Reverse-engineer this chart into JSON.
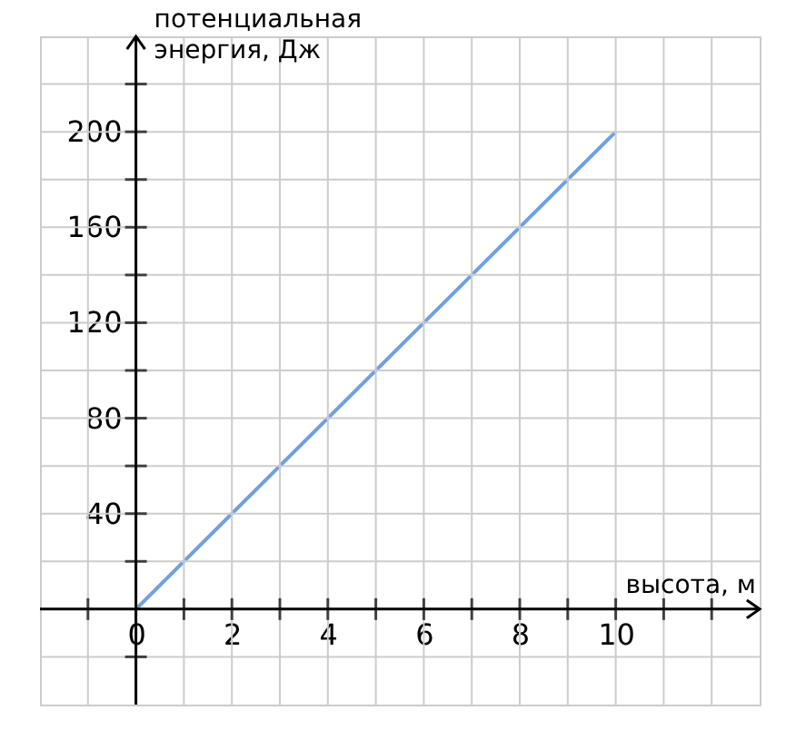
{
  "chart_data": {
    "type": "line",
    "xlabel": "высота, м",
    "ylabel": "потенциальная\nэнергия, Дж",
    "x": [
      0,
      10
    ],
    "series": [
      {
        "color": "#6fa0e0",
        "values": [
          0,
          200
        ]
      }
    ],
    "xlim": [
      -2,
      13
    ],
    "ylim": [
      -40,
      240
    ],
    "xticks": [
      {
        "value": -1,
        "label": null
      },
      0,
      {
        "value": 1,
        "label": null
      },
      2,
      {
        "value": 3,
        "label": null
      },
      4,
      {
        "value": 5,
        "label": null
      },
      6,
      {
        "value": 7,
        "label": null
      },
      8,
      {
        "value": 9,
        "label": null
      },
      10,
      {
        "value": 11,
        "label": null
      },
      {
        "value": 12,
        "label": null
      }
    ],
    "yticks": [
      {
        "value": -20,
        "label": null
      },
      {
        "value": 20,
        "label": null
      },
      40,
      {
        "value": 60,
        "label": null
      },
      80,
      {
        "value": 100,
        "label": null
      },
      120,
      {
        "value": 140,
        "label": null
      },
      160,
      {
        "value": 180,
        "label": null
      },
      200,
      {
        "value": 220,
        "label": null
      }
    ],
    "grid": true,
    "marker": "none",
    "line_style": "solid",
    "legend": false
  }
}
